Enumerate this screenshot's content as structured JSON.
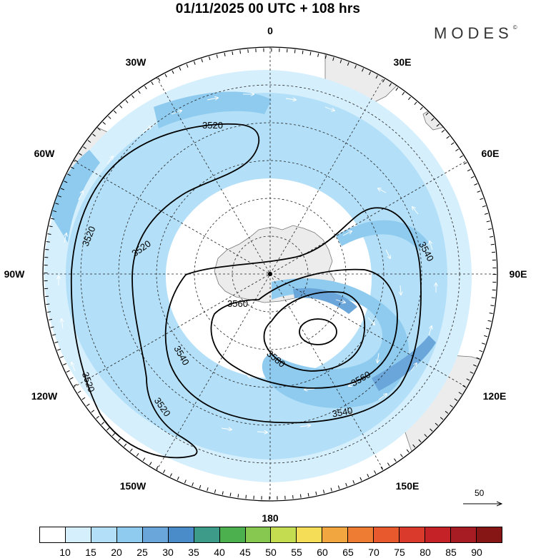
{
  "title": "01/11/2025  00 UTC  + 108 hrs",
  "brand": "MODES",
  "brand_mark": "©",
  "longitudes": {
    "lon_0": "0",
    "lon_30e": "30E",
    "lon_60e": "60E",
    "lon_90e": "90E",
    "lon_120e": "120E",
    "lon_150e": "150E",
    "lon_180": "180",
    "lon_150w": "150W",
    "lon_120w": "120W",
    "lon_90w": "90W",
    "lon_60w": "60W",
    "lon_30w": "30W"
  },
  "contour_labels": {
    "c1": "3520",
    "c2": "3520",
    "c3": "3520",
    "c4": "3520",
    "c5": "3520",
    "c6": "3540",
    "c7": "3540",
    "c8": "3540",
    "c9": "3560",
    "c10": "3560",
    "c11": "3580"
  },
  "reference_vector": "50",
  "colorbar": {
    "colors": [
      "#ffffff",
      "#d6effd",
      "#b3e0f8",
      "#8ecbef",
      "#6aa6d9",
      "#4a8bc9",
      "#3d9b8a",
      "#4db04e",
      "#87c850",
      "#c4dc50",
      "#f6dd57",
      "#f2a640",
      "#ee7c33",
      "#e85a2e",
      "#d93a2b",
      "#c42227",
      "#a61c22",
      "#861515"
    ],
    "ticks": [
      "10",
      "15",
      "20",
      "25",
      "30",
      "35",
      "40",
      "45",
      "50",
      "55",
      "60",
      "65",
      "70",
      "75",
      "80",
      "85",
      "90"
    ]
  }
}
